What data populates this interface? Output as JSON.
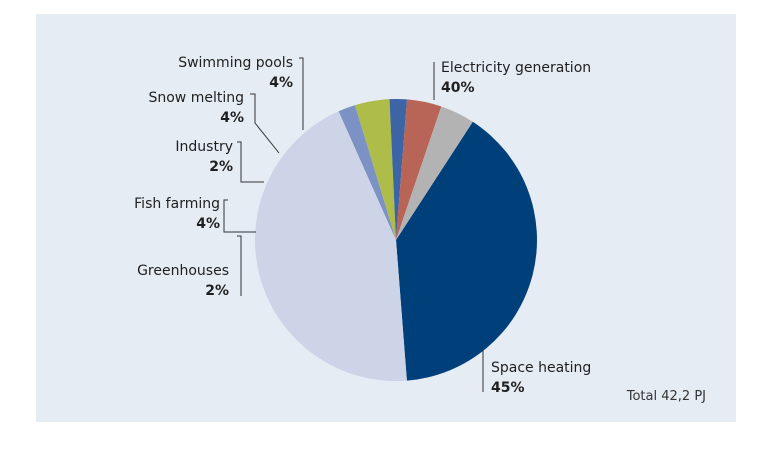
{
  "chart_data": {
    "type": "pie",
    "title": "",
    "slices": [
      {
        "label": "Electricity generation",
        "value": 40,
        "value_label": "40%",
        "color": "#00407a"
      },
      {
        "label": "Space heating",
        "value": 45,
        "value_label": "45%",
        "color": "#cdd4e8"
      },
      {
        "label": "Greenhouses",
        "value": 2,
        "value_label": "2%",
        "color": "#7d92c4"
      },
      {
        "label": "Fish farming",
        "value": 4,
        "value_label": "4%",
        "color": "#aebd4a"
      },
      {
        "label": "Industry",
        "value": 2,
        "value_label": "2%",
        "color": "#3d65a5"
      },
      {
        "label": "Snow melting",
        "value": 4,
        "value_label": "4%",
        "color": "#b86557"
      },
      {
        "label": "Swimming pools",
        "value": 4,
        "value_label": "4%",
        "color": "#b3b3b3"
      }
    ],
    "total_label": "Total 42,2 PJ",
    "legend": "none"
  }
}
